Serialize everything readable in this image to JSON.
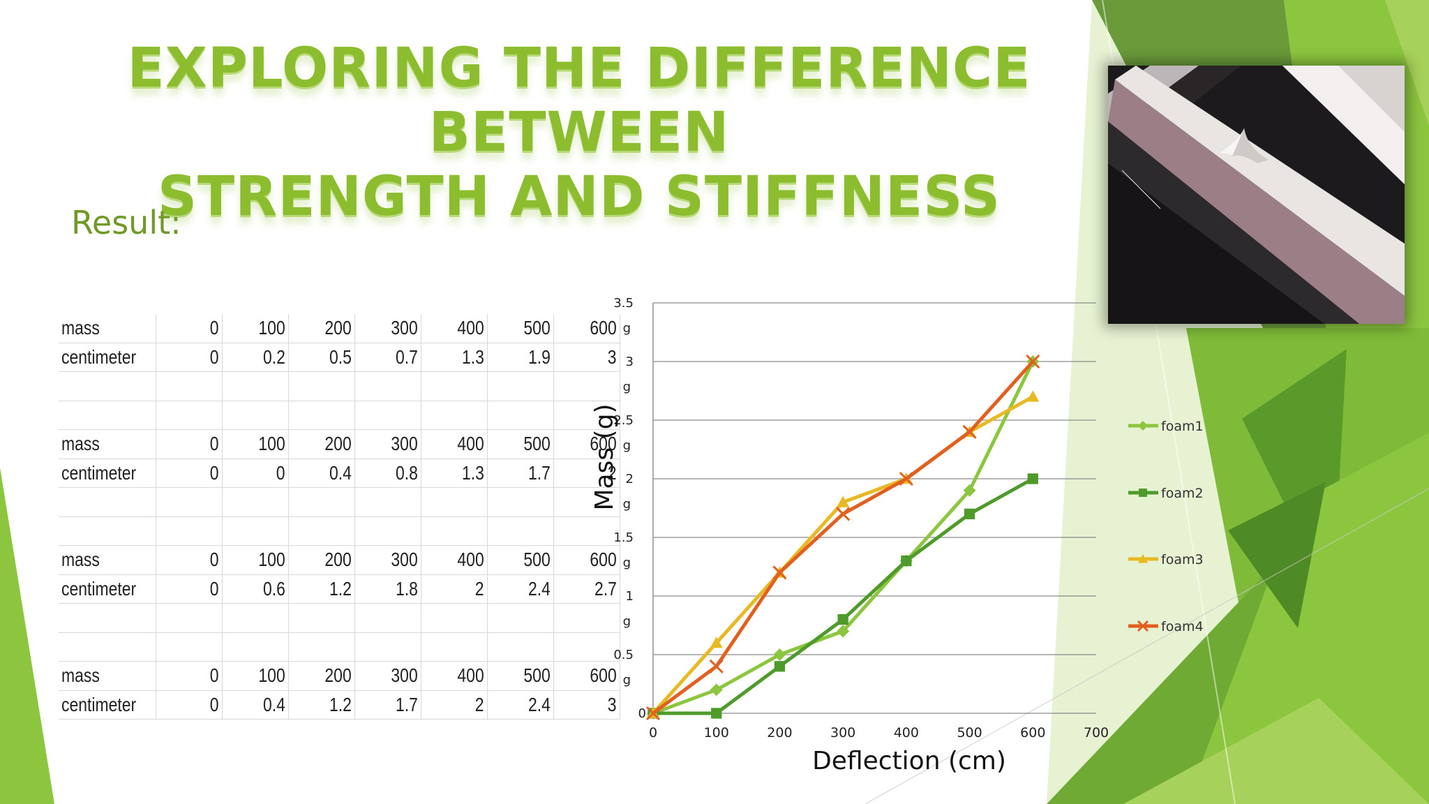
{
  "slide": {
    "title_line1": "Exploring the difference between",
    "title_line2": "strength and stiffness",
    "result_label": "Result:"
  },
  "colors": {
    "accent": "#8cbd2e",
    "foam1": "#8cc63f",
    "foam2": "#4e9a2a",
    "foam3": "#e8b923",
    "foam4": "#e2601f"
  },
  "table": {
    "groups": [
      {
        "rows": [
          {
            "label": "mass",
            "values": [
              "0",
              "100",
              "200",
              "300",
              "400",
              "500",
              "600"
            ]
          },
          {
            "label": "centimeter",
            "values": [
              "0",
              "0.2",
              "0.5",
              "0.7",
              "1.3",
              "1.9",
              "3"
            ]
          }
        ]
      },
      {
        "rows": [
          {
            "label": "mass",
            "values": [
              "0",
              "100",
              "200",
              "300",
              "400",
              "500",
              "600"
            ]
          },
          {
            "label": "centimeter",
            "values": [
              "0",
              "0",
              "0.4",
              "0.8",
              "1.3",
              "1.7",
              "2"
            ]
          }
        ]
      },
      {
        "rows": [
          {
            "label": "mass",
            "values": [
              "0",
              "100",
              "200",
              "300",
              "400",
              "500",
              "600"
            ]
          },
          {
            "label": "centimeter",
            "values": [
              "0",
              "0.6",
              "1.2",
              "1.8",
              "2",
              "2.4",
              "2.7"
            ]
          }
        ]
      },
      {
        "rows": [
          {
            "label": "mass",
            "values": [
              "0",
              "100",
              "200",
              "300",
              "400",
              "500",
              "600"
            ]
          },
          {
            "label": "centimeter",
            "values": [
              "0",
              "0.4",
              "1.2",
              "1.7",
              "2",
              "2.4",
              "3"
            ]
          }
        ]
      }
    ]
  },
  "chart_data": {
    "type": "line",
    "title": "",
    "xlabel": "Deflection (cm)",
    "ylabel": "Mass (g)",
    "xlim": [
      0,
      700
    ],
    "ylim": [
      0,
      3.5
    ],
    "x_ticks": [
      "0",
      "100",
      "200",
      "300",
      "400",
      "500",
      "600",
      "700"
    ],
    "y_ticks": [
      {
        "value": 0,
        "label": "0",
        "unit": ""
      },
      {
        "value": 0.5,
        "label": "0.5",
        "unit": "g"
      },
      {
        "value": 1,
        "label": "1",
        "unit": "g"
      },
      {
        "value": 1.5,
        "label": "1.5",
        "unit": "g"
      },
      {
        "value": 2,
        "label": "2",
        "unit": "g"
      },
      {
        "value": 2.5,
        "label": "2.5",
        "unit": "g"
      },
      {
        "value": 3,
        "label": "3",
        "unit": "g"
      },
      {
        "value": 3.5,
        "label": "3.5",
        "unit": "g"
      }
    ],
    "grid": true,
    "legend": "right",
    "x": [
      0,
      100,
      200,
      300,
      400,
      500,
      600
    ],
    "series": [
      {
        "name": "foam1",
        "marker": "diamond",
        "color": "#8cc63f",
        "values": [
          0,
          0.2,
          0.5,
          0.7,
          1.3,
          1.9,
          3
        ]
      },
      {
        "name": "foam2",
        "marker": "square",
        "color": "#4e9a2a",
        "values": [
          0,
          0,
          0.4,
          0.8,
          1.3,
          1.7,
          2
        ]
      },
      {
        "name": "foam3",
        "marker": "triangle",
        "color": "#e8b923",
        "values": [
          0,
          0.6,
          1.2,
          1.8,
          2,
          2.4,
          2.7
        ]
      },
      {
        "name": "foam4",
        "marker": "x",
        "color": "#e2601f",
        "values": [
          0,
          0.4,
          1.2,
          1.7,
          2,
          2.4,
          3
        ]
      }
    ]
  }
}
